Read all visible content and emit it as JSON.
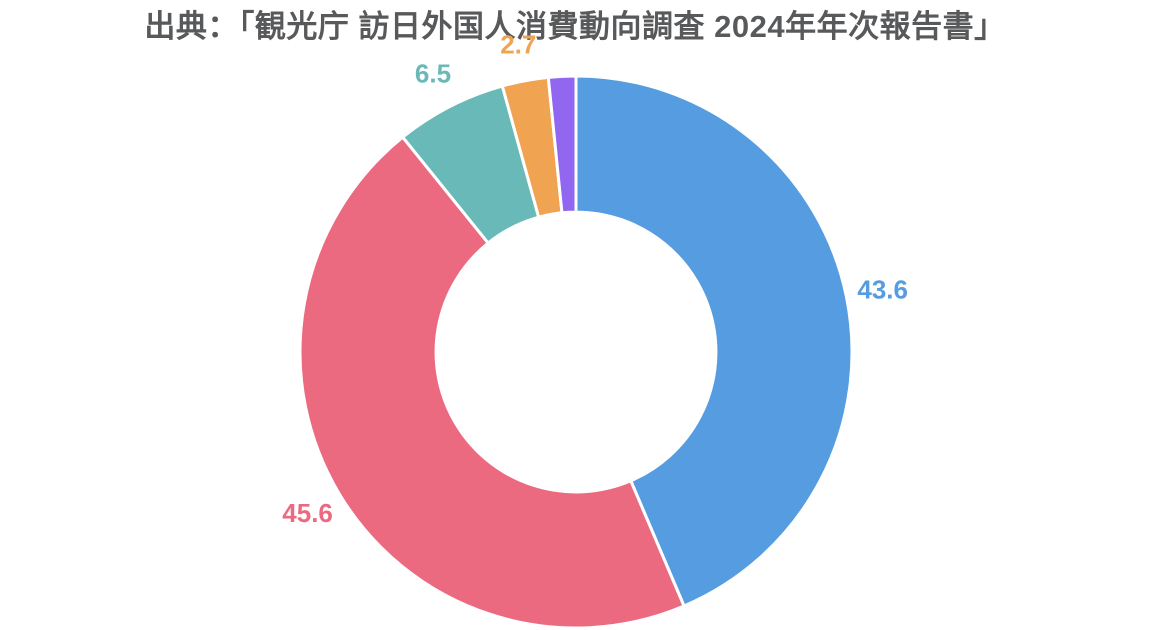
{
  "chart_data": {
    "type": "pie",
    "subtype": "donut",
    "title": "出典：「観光庁 訪日外国人消費動向調査 2024年年次報告書」",
    "title_color": "#58595b",
    "background_color": "#ffffff",
    "legend": "none",
    "start_angle_deg": 0,
    "direction": "clockwise",
    "inner_radius_ratio": 0.507,
    "separator_color": "#ffffff",
    "slices": [
      {
        "label": "43.6",
        "value": 43.6,
        "color": "#569ce0"
      },
      {
        "label": "45.6",
        "value": 45.6,
        "color": "#ec6a80"
      },
      {
        "label": "6.5",
        "value": 6.5,
        "color": "#68b9b7"
      },
      {
        "label": "2.7",
        "value": 2.7,
        "color": "#f0a452"
      },
      {
        "label": "",
        "value": 1.6,
        "color": "#9166f0"
      }
    ]
  }
}
